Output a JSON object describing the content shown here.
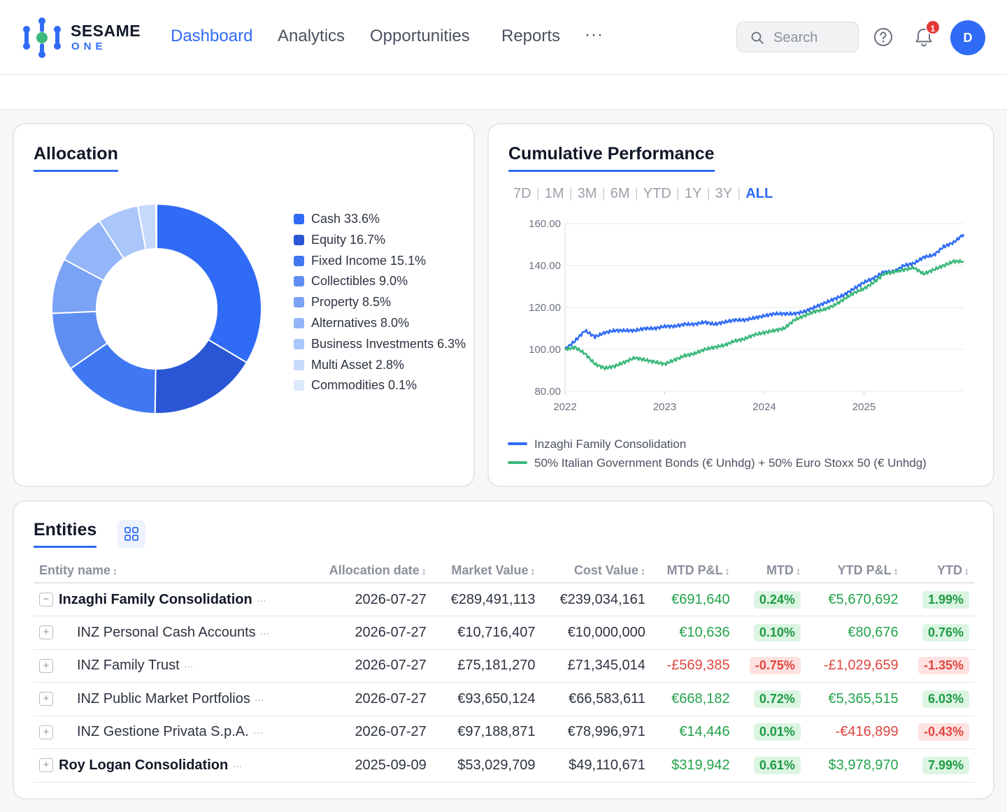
{
  "brand": {
    "line1": "SESAME",
    "line2": "ONE"
  },
  "nav": {
    "items": [
      {
        "label": "Dashboard"
      },
      {
        "label": "Analytics"
      },
      {
        "label": "Opportunities"
      },
      {
        "label": "Reports"
      }
    ],
    "more_label": "···"
  },
  "search": {
    "placeholder": "Search"
  },
  "notifications": {
    "count": "1"
  },
  "user": {
    "initial": "D"
  },
  "colors": {
    "accent": "#2f6bf5",
    "positive": "#22a34a",
    "negative": "#e0453f",
    "benchmark": "#3bb87a"
  },
  "allocation": {
    "title": "Allocation",
    "chart_data": {
      "type": "pie",
      "categories": [
        "Cash",
        "Equity",
        "Fixed Income",
        "Collectibles",
        "Property",
        "Alternatives",
        "Business Investments",
        "Multi Asset",
        "Commodities"
      ],
      "values": [
        33.6,
        16.7,
        15.1,
        9.0,
        8.5,
        8.0,
        6.3,
        2.8,
        0.1
      ],
      "labels": [
        "Cash 33.6%",
        "Equity 16.7%",
        "Fixed Income 15.1%",
        "Collectibles 9.0%",
        "Property 8.5%",
        "Alternatives 8.0%",
        "Business Investments 6.3%",
        "Multi Asset 2.8%",
        "Commodities 0.1%"
      ],
      "colors": [
        "#2f6bf5",
        "#2a56d6",
        "#3f78f0",
        "#5f8ef2",
        "#7aa2f5",
        "#94b6f8",
        "#aac6fa",
        "#c6d9fc",
        "#dce8fe"
      ],
      "legend_position": "right"
    }
  },
  "performance": {
    "title": "Cumulative Performance",
    "ranges": [
      "7D",
      "1M",
      "3M",
      "6M",
      "YTD",
      "1Y",
      "3Y",
      "ALL"
    ],
    "active_range": "ALL",
    "chart_data": {
      "type": "line",
      "x": [
        2022.0,
        2022.1,
        2022.2,
        2022.3,
        2022.4,
        2022.5,
        2022.6,
        2022.7,
        2022.8,
        2022.9,
        2023.0,
        2023.1,
        2023.2,
        2023.3,
        2023.4,
        2023.5,
        2023.6,
        2023.7,
        2023.8,
        2023.9,
        2024.0,
        2024.1,
        2024.2,
        2024.3,
        2024.4,
        2024.5,
        2024.6,
        2024.7,
        2024.8,
        2024.9,
        2025.0,
        2025.1,
        2025.2,
        2025.3,
        2025.4,
        2025.5,
        2025.6,
        2025.7,
        2025.8,
        2025.9,
        2026.0
      ],
      "series": [
        {
          "name": "Inzaghi Family Consolidation",
          "color": "#2f6bf5",
          "values": [
            100,
            104,
            109,
            106,
            108,
            109,
            109,
            109,
            110,
            110,
            111,
            111,
            112,
            112,
            113,
            112,
            113,
            114,
            114,
            115,
            116,
            117,
            117,
            117,
            118,
            120,
            122,
            124,
            126,
            129,
            132,
            134,
            137,
            137,
            140,
            141,
            144,
            145,
            149,
            151,
            155
          ]
        },
        {
          "name": "50% Italian Government Bonds (€ Unhdg) + 50% Euro Stoxx 50 (€ Unhdg)",
          "color": "#3bb87a",
          "values": [
            100,
            101,
            98,
            93,
            91,
            92,
            94,
            96,
            95,
            94,
            93,
            95,
            97,
            98,
            100,
            101,
            102,
            104,
            105,
            107,
            108,
            109,
            110,
            114,
            116,
            118,
            119,
            121,
            124,
            127,
            129,
            132,
            136,
            137,
            138,
            139,
            136,
            138,
            140,
            142,
            142
          ]
        }
      ],
      "xticks": [
        "2022",
        "2023",
        "2024",
        "2025"
      ],
      "yticks": [
        "160.00",
        "140.00",
        "120.00",
        "100.00",
        "80.00"
      ],
      "ylim": [
        80,
        160
      ],
      "xlim": [
        2022.0,
        2026.0
      ],
      "grid": true,
      "legend_position": "bottom"
    }
  },
  "entities": {
    "title": "Entities",
    "columns": [
      "Entity name",
      "Allocation date",
      "Market Value",
      "Cost Value",
      "MTD P&L",
      "MTD",
      "YTD P&L",
      "YTD"
    ],
    "rows": [
      {
        "expander": "−",
        "name": "Inzaghi Family Consolidation",
        "level": 0,
        "date": "2026-07-27",
        "market": "€289,491,113",
        "cost": "€239,034,161",
        "mtd_pl": "€691,640",
        "mtd": "0.24%",
        "ytd_pl": "€5,670,692",
        "ytd": "1.99%",
        "mtd_sign": "pos",
        "ytd_sign": "pos"
      },
      {
        "expander": "+",
        "name": "INZ Personal Cash Accounts",
        "level": 1,
        "date": "2026-07-27",
        "market": "€10,716,407",
        "cost": "€10,000,000",
        "mtd_pl": "€10,636",
        "mtd": "0.10%",
        "ytd_pl": "€80,676",
        "ytd": "0.76%",
        "mtd_sign": "pos",
        "ytd_sign": "pos"
      },
      {
        "expander": "+",
        "name": "INZ Family Trust",
        "level": 1,
        "date": "2026-07-27",
        "market": "£75,181,270",
        "cost": "£71,345,014",
        "mtd_pl": "-£569,385",
        "mtd": "-0.75%",
        "ytd_pl": "-£1,029,659",
        "ytd": "-1.35%",
        "mtd_sign": "neg",
        "ytd_sign": "neg"
      },
      {
        "expander": "+",
        "name": "INZ Public Market Portfolios",
        "level": 1,
        "date": "2026-07-27",
        "market": "€93,650,124",
        "cost": "€66,583,611",
        "mtd_pl": "€668,182",
        "mtd": "0.72%",
        "ytd_pl": "€5,365,515",
        "ytd": "6.03%",
        "mtd_sign": "pos",
        "ytd_sign": "pos"
      },
      {
        "expander": "+",
        "name": "INZ Gestione Privata S.p.A.",
        "level": 1,
        "date": "2026-07-27",
        "market": "€97,188,871",
        "cost": "€78,996,971",
        "mtd_pl": "€14,446",
        "mtd": "0.01%",
        "ytd_pl": "-€416,899",
        "ytd": "-0.43%",
        "mtd_sign": "pos",
        "ytd_sign": "neg"
      },
      {
        "expander": "+",
        "name": "Roy Logan Consolidation",
        "level": 0,
        "date": "2025-09-09",
        "market": "$53,029,709",
        "cost": "$49,110,671",
        "mtd_pl": "$319,942",
        "mtd": "0.61%",
        "ytd_pl": "$3,978,970",
        "ytd": "7.99%",
        "mtd_sign": "pos",
        "ytd_sign": "pos"
      }
    ]
  }
}
